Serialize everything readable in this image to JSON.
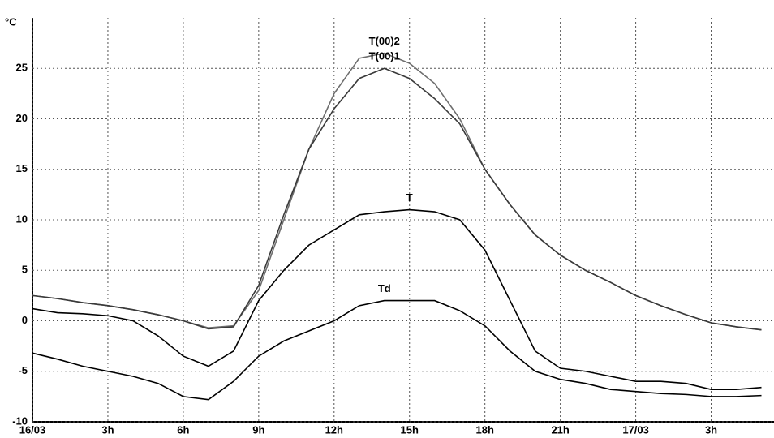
{
  "chart_data": {
    "type": "line",
    "y_label": "°C",
    "x": [
      0,
      1,
      2,
      3,
      4,
      5,
      6,
      7,
      8,
      9,
      10,
      11,
      12,
      13,
      14,
      15,
      16,
      17,
      18,
      19,
      20,
      21,
      22,
      23,
      24,
      25,
      26,
      27,
      28,
      29
    ],
    "xlim": [
      0,
      29.5
    ],
    "xticks": [
      {
        "value": 0,
        "label": "16/03"
      },
      {
        "value": 3,
        "label": "3h"
      },
      {
        "value": 6,
        "label": "6h"
      },
      {
        "value": 9,
        "label": "9h"
      },
      {
        "value": 12,
        "label": "12h"
      },
      {
        "value": 15,
        "label": "15h"
      },
      {
        "value": 18,
        "label": "18h"
      },
      {
        "value": 21,
        "label": "21h"
      },
      {
        "value": 24,
        "label": "17/03"
      },
      {
        "value": 27,
        "label": "3h"
      }
    ],
    "ylim": [
      -10,
      30
    ],
    "yticks": [
      -10,
      -5,
      0,
      5,
      10,
      15,
      20,
      25
    ],
    "grid": true,
    "series": [
      {
        "name": "T(00)2",
        "color": "#6e6e6e",
        "values": [
          2.5,
          2.2,
          1.8,
          1.5,
          1.1,
          0.6,
          0,
          -0.7,
          -0.5,
          3,
          10,
          17,
          22.5,
          26,
          26.5,
          25.5,
          23.5,
          20,
          15,
          11.5,
          8.5,
          6.5,
          5,
          3.8,
          2.5,
          1.5,
          0.6,
          -0.2,
          -0.6,
          -0.9
        ]
      },
      {
        "name": "T(00)1",
        "color": "#3a3a3a",
        "values": [
          2.5,
          2.2,
          1.8,
          1.5,
          1.1,
          0.6,
          0,
          -0.8,
          -0.6,
          3.5,
          10.5,
          17,
          21,
          24,
          25,
          24,
          22,
          19.5,
          15,
          11.5,
          8.5,
          6.5,
          5,
          3.8,
          2.5,
          1.5,
          0.6,
          -0.2,
          -0.6,
          -0.9
        ]
      },
      {
        "name": "T",
        "color": "#000000",
        "values": [
          1.2,
          0.8,
          0.7,
          0.5,
          0,
          -1.5,
          -3.5,
          -4.5,
          -3,
          2,
          5,
          7.5,
          9,
          10.5,
          10.8,
          11,
          10.8,
          10,
          7,
          2,
          -3,
          -4.7,
          -5,
          -5.5,
          -6,
          -6,
          -6.2,
          -6.8,
          -6.8,
          -6.6
        ]
      },
      {
        "name": "Td",
        "color": "#000000",
        "values": [
          -3.2,
          -3.8,
          -4.5,
          -5,
          -5.5,
          -6.2,
          -7.5,
          -7.8,
          -6,
          -3.5,
          -2,
          -1,
          0,
          1.5,
          2,
          2,
          2,
          1,
          -0.5,
          -3,
          -5,
          -5.8,
          -6.2,
          -6.8,
          -7,
          -7.2,
          -7.3,
          -7.5,
          -7.5,
          -7.4
        ]
      }
    ]
  }
}
